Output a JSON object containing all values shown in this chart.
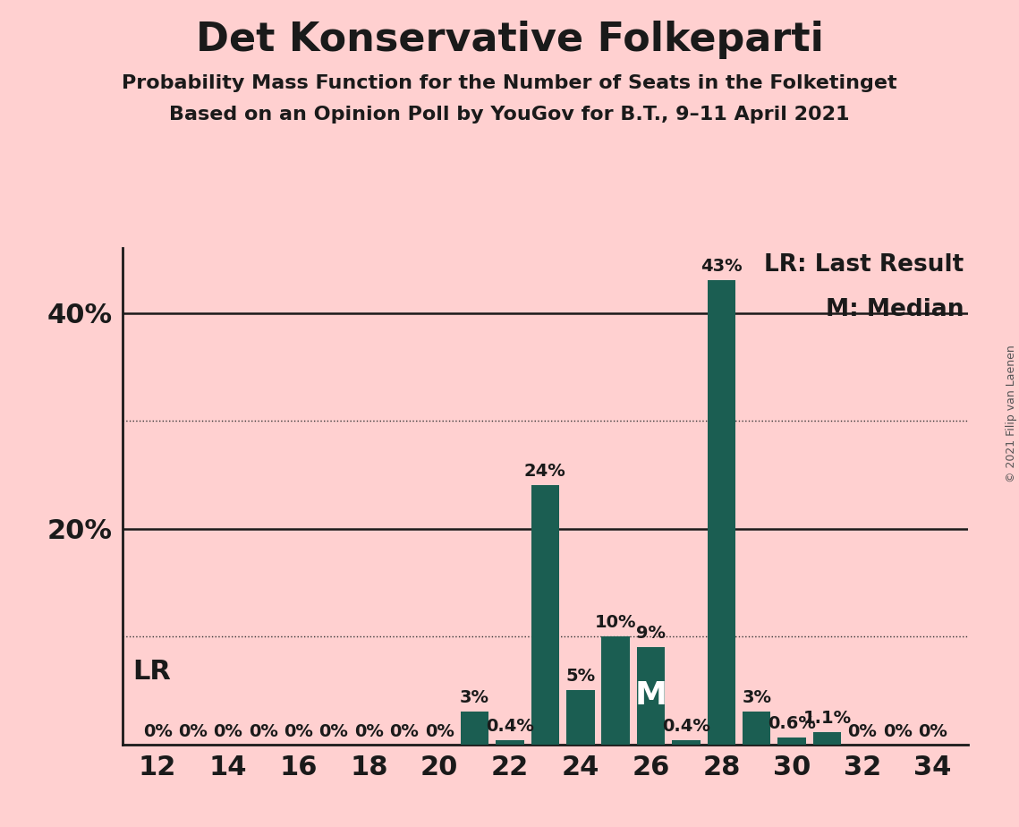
{
  "title": "Det Konservative Folkeparti",
  "subtitle1": "Probability Mass Function for the Number of Seats in the Folketinget",
  "subtitle2": "Based on an Opinion Poll by YouGov for B.T., 9–11 April 2021",
  "copyright": "© 2021 Filip van Laenen",
  "background_color": "#FFD0D0",
  "bar_color": "#1B5E52",
  "seats": [
    12,
    13,
    14,
    15,
    16,
    17,
    18,
    19,
    20,
    21,
    22,
    23,
    24,
    25,
    26,
    27,
    28,
    29,
    30,
    31,
    32,
    33,
    34
  ],
  "probabilities": [
    0.0,
    0.0,
    0.0,
    0.0,
    0.0,
    0.0,
    0.0,
    0.0,
    0.0,
    3.0,
    0.4,
    24.0,
    5.0,
    10.0,
    9.0,
    0.4,
    43.0,
    3.0,
    0.6,
    1.1,
    0.0,
    0.0,
    0.0
  ],
  "last_result_seat": 12,
  "median_seat": 26,
  "xlim": [
    11,
    35
  ],
  "ylim": [
    0,
    46
  ],
  "yticks": [
    20,
    40
  ],
  "ytick_labels": [
    "20%",
    "40%"
  ],
  "xticks": [
    12,
    14,
    16,
    18,
    20,
    22,
    24,
    26,
    28,
    30,
    32,
    34
  ],
  "dotted_lines": [
    10.0,
    30.0
  ],
  "solid_lines": [
    20.0,
    40.0
  ],
  "legend_lr": "LR: Last Result",
  "legend_m": "M: Median",
  "title_fontsize": 32,
  "subtitle_fontsize": 16,
  "axis_fontsize": 22,
  "bar_label_fontsize": 14,
  "legend_fontsize": 19,
  "lr_label_fontsize": 22,
  "m_label_fontsize": 26
}
